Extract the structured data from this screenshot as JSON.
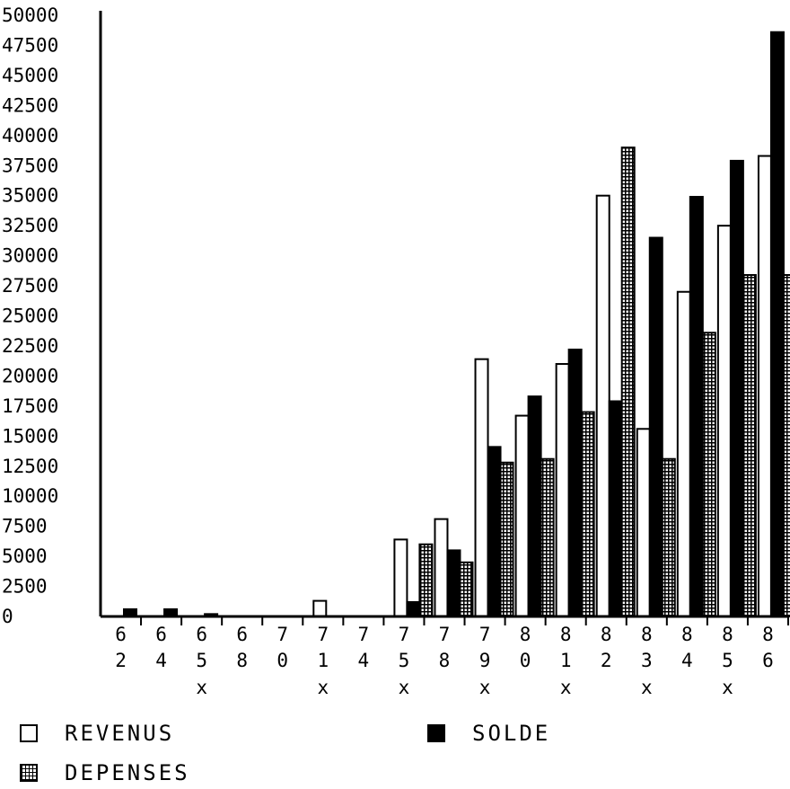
{
  "chart_data": {
    "type": "bar",
    "categories": [
      {
        "top": "6",
        "bottom": "2",
        "mark": ""
      },
      {
        "top": "6",
        "bottom": "4",
        "mark": ""
      },
      {
        "top": "6",
        "bottom": "5",
        "mark": "x"
      },
      {
        "top": "6",
        "bottom": "8",
        "mark": ""
      },
      {
        "top": "7",
        "bottom": "0",
        "mark": ""
      },
      {
        "top": "7",
        "bottom": "1",
        "mark": "x"
      },
      {
        "top": "7",
        "bottom": "4",
        "mark": ""
      },
      {
        "top": "7",
        "bottom": "5",
        "mark": "x"
      },
      {
        "top": "7",
        "bottom": "8",
        "mark": ""
      },
      {
        "top": "7",
        "bottom": "9",
        "mark": "x"
      },
      {
        "top": "8",
        "bottom": "0",
        "mark": ""
      },
      {
        "top": "8",
        "bottom": "1",
        "mark": "x"
      },
      {
        "top": "8",
        "bottom": "2",
        "mark": ""
      },
      {
        "top": "8",
        "bottom": "3",
        "mark": "x"
      },
      {
        "top": "8",
        "bottom": "4",
        "mark": ""
      },
      {
        "top": "8",
        "bottom": "5",
        "mark": "x"
      },
      {
        "top": "8",
        "bottom": "6",
        "mark": ""
      }
    ],
    "series": [
      {
        "name": "REVENUS",
        "style": "open",
        "values": [
          0,
          0,
          0,
          0,
          0,
          1300,
          0,
          6400,
          8100,
          21400,
          16700,
          21000,
          35000,
          15600,
          27000,
          32500,
          38300
        ]
      },
      {
        "name": "SOLDE",
        "style": "solid",
        "values": [
          600,
          600,
          200,
          0,
          0,
          0,
          0,
          1200,
          5500,
          14100,
          18300,
          22200,
          17900,
          31500,
          34900,
          37900,
          48600
        ]
      },
      {
        "name": "DEPENSES",
        "style": "hatched",
        "values": [
          0,
          0,
          0,
          0,
          0,
          0,
          0,
          6000,
          4500,
          12800,
          13100,
          17000,
          39000,
          13100,
          23600,
          28400,
          28400
        ]
      }
    ],
    "yticks": [
      "50000",
      "47500",
      "45000",
      "42500",
      "40000",
      "37500",
      "35000",
      "32500",
      "30000",
      "27500",
      "25000",
      "22500",
      "20000",
      "17500",
      "15000",
      "12500",
      "10000",
      "7500",
      "5000",
      "2500",
      "0"
    ],
    "ylim": [
      0,
      50000
    ],
    "legend": [
      {
        "label": "REVENUS",
        "style": "open"
      },
      {
        "label": "SOLDE",
        "style": "solid"
      },
      {
        "label": "DEPENSES",
        "style": "hatched"
      }
    ],
    "colors": {
      "ink": "#000000",
      "paper": "#ffffff"
    }
  }
}
